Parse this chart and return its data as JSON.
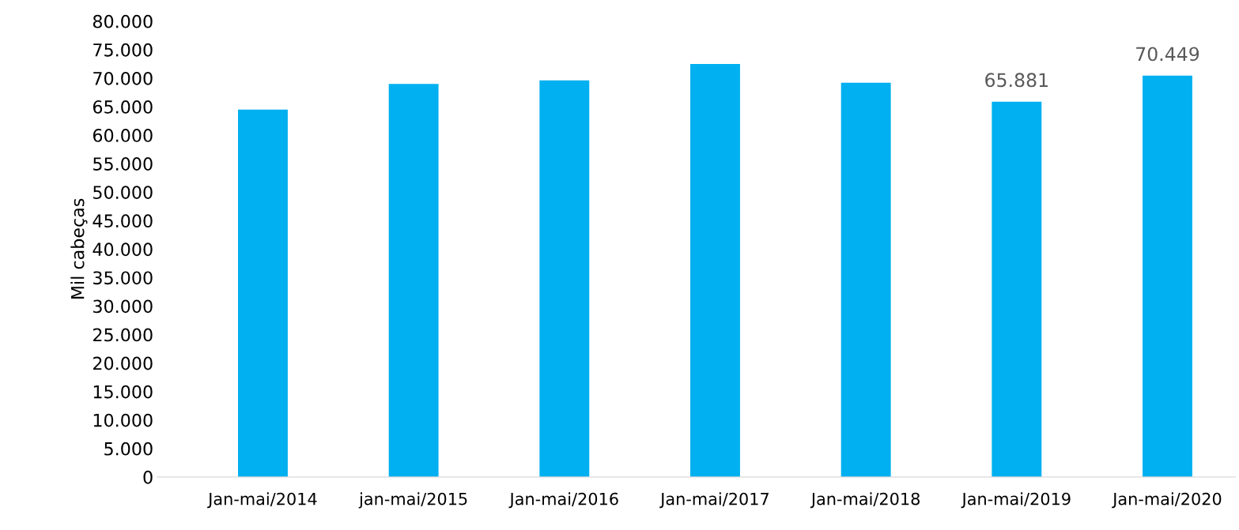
{
  "chart_data": {
    "type": "bar",
    "ylabel": "Mil cabeças",
    "categories": [
      "Jan-mai/2014",
      "jan-mai/2015",
      "Jan-mai/2016",
      "Jan-mai/2017",
      "Jan-mai/2018",
      "Jan-mai/2019",
      "Jan-mai/2020"
    ],
    "values": [
      64500,
      69000,
      69600,
      72500,
      69200,
      65881,
      70449
    ],
    "value_labels": [
      null,
      null,
      null,
      null,
      null,
      "65.881",
      "70.449"
    ],
    "color": "#00b0f0",
    "ylim": [
      0,
      80000
    ],
    "yticks": [
      {
        "value": 0,
        "label": "0"
      },
      {
        "value": 5000,
        "label": "5.000"
      },
      {
        "value": 10000,
        "label": "10.000"
      },
      {
        "value": 15000,
        "label": "15.000"
      },
      {
        "value": 20000,
        "label": "20.000"
      },
      {
        "value": 25000,
        "label": "25.000"
      },
      {
        "value": 30000,
        "label": "30.000"
      },
      {
        "value": 35000,
        "label": "35.000"
      },
      {
        "value": 40000,
        "label": "40.000"
      },
      {
        "value": 45000,
        "label": "45.000"
      },
      {
        "value": 50000,
        "label": "50.000"
      },
      {
        "value": 55000,
        "label": "55.000"
      },
      {
        "value": 60000,
        "label": "60.000"
      },
      {
        "value": 65000,
        "label": "65.000"
      },
      {
        "value": 70000,
        "label": "70.000"
      },
      {
        "value": 75000,
        "label": "75.000"
      },
      {
        "value": 80000,
        "label": "80.000"
      }
    ],
    "grid": false,
    "legend": false
  }
}
